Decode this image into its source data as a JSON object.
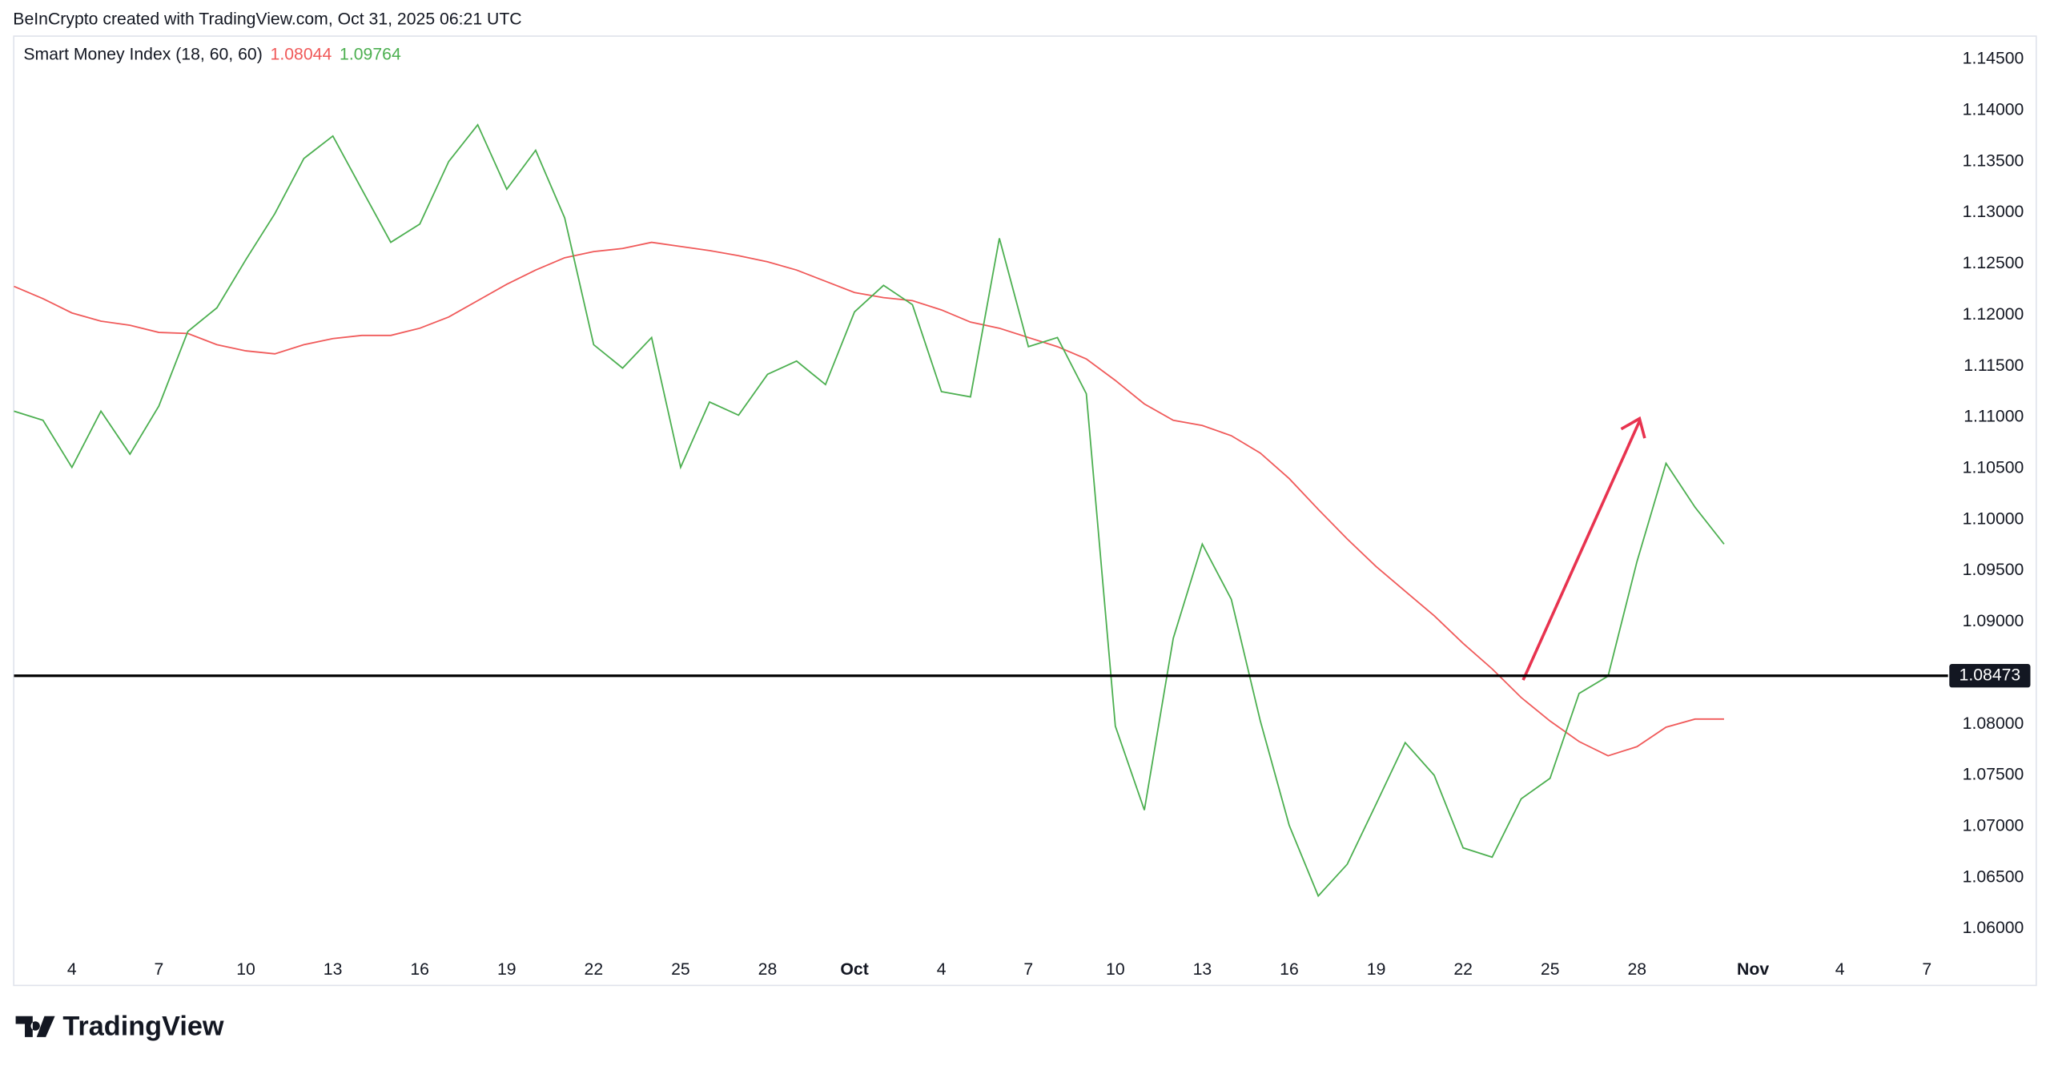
{
  "header": "BeInCrypto created with TradingView.com, Oct 31, 2025 06:21 UTC",
  "footer": "TradingView",
  "chart_data": {
    "type": "line",
    "indicator": "Smart Money Index (18, 60, 60)",
    "xlim": [
      "2025-09-02",
      "2025-11-08"
    ],
    "xticks": [
      {
        "value": "2025-09-04",
        "label": "4"
      },
      {
        "value": "2025-09-07",
        "label": "7"
      },
      {
        "value": "2025-09-10",
        "label": "10"
      },
      {
        "value": "2025-09-13",
        "label": "13"
      },
      {
        "value": "2025-09-16",
        "label": "16"
      },
      {
        "value": "2025-09-19",
        "label": "19"
      },
      {
        "value": "2025-09-22",
        "label": "22"
      },
      {
        "value": "2025-09-25",
        "label": "25"
      },
      {
        "value": "2025-09-28",
        "label": "28"
      },
      {
        "value": "2025-10-01",
        "label": "Oct"
      },
      {
        "value": "2025-10-04",
        "label": "4"
      },
      {
        "value": "2025-10-07",
        "label": "7"
      },
      {
        "value": "2025-10-10",
        "label": "10"
      },
      {
        "value": "2025-10-13",
        "label": "13"
      },
      {
        "value": "2025-10-16",
        "label": "16"
      },
      {
        "value": "2025-10-19",
        "label": "19"
      },
      {
        "value": "2025-10-22",
        "label": "22"
      },
      {
        "value": "2025-10-25",
        "label": "25"
      },
      {
        "value": "2025-10-28",
        "label": "28"
      },
      {
        "value": "2025-11-01",
        "label": "Nov"
      },
      {
        "value": "2025-11-04",
        "label": "4"
      },
      {
        "value": "2025-11-07",
        "label": "7"
      }
    ],
    "ylim": [
      1.0565,
      1.1472
    ],
    "yticks": [
      {
        "value": 1.145,
        "label": "1.14500"
      },
      {
        "value": 1.14,
        "label": "1.14000"
      },
      {
        "value": 1.135,
        "label": "1.13500"
      },
      {
        "value": 1.13,
        "label": "1.13000"
      },
      {
        "value": 1.125,
        "label": "1.12500"
      },
      {
        "value": 1.12,
        "label": "1.12000"
      },
      {
        "value": 1.115,
        "label": "1.11500"
      },
      {
        "value": 1.11,
        "label": "1.11000"
      },
      {
        "value": 1.105,
        "label": "1.10500"
      },
      {
        "value": 1.1,
        "label": "1.10000"
      },
      {
        "value": 1.095,
        "label": "1.09500"
      },
      {
        "value": 1.09,
        "label": "1.09000"
      },
      {
        "value": 1.085,
        "label": "1.08500"
      },
      {
        "value": 1.08,
        "label": "1.08000"
      },
      {
        "value": 1.075,
        "label": "1.07500"
      },
      {
        "value": 1.07,
        "label": "1.07000"
      },
      {
        "value": 1.065,
        "label": "1.06500"
      },
      {
        "value": 1.06,
        "label": "1.06000"
      }
    ],
    "level": {
      "value": 1.08473,
      "label": "1.08473"
    },
    "x_start": "2025-09-02",
    "series": [
      {
        "color": "#f05a5a",
        "last": {
          "value": 1.08044,
          "label": "1.08044"
        },
        "values": [
          1.1228,
          1.1216,
          1.1202,
          1.1194,
          1.119,
          1.1183,
          1.1182,
          1.1171,
          1.1165,
          1.1162,
          1.1171,
          1.1177,
          1.118,
          1.118,
          1.1187,
          1.1198,
          1.1214,
          1.123,
          1.1244,
          1.1256,
          1.1262,
          1.1265,
          1.1271,
          1.1267,
          1.1263,
          1.1258,
          1.1252,
          1.1244,
          1.1233,
          1.1222,
          1.1217,
          1.1214,
          1.1205,
          1.1193,
          1.1187,
          1.1178,
          1.1169,
          1.1157,
          1.1136,
          1.1113,
          1.1097,
          1.1092,
          1.1082,
          1.1065,
          1.104,
          1.101,
          1.0981,
          1.0954,
          1.093,
          1.0906,
          1.0879,
          1.0854,
          1.0826,
          1.0803,
          1.0783,
          1.0769,
          1.0778,
          1.0797,
          1.0805,
          1.0805
        ]
      },
      {
        "color": "#4caf50",
        "last": {
          "value": 1.09764,
          "label": "1.09764"
        },
        "values": [
          1.1106,
          1.1097,
          1.1051,
          1.1106,
          1.1064,
          1.1111,
          1.1184,
          1.1207,
          1.1254,
          1.1299,
          1.1353,
          1.1375,
          1.1323,
          1.1271,
          1.1289,
          1.135,
          1.1386,
          1.1323,
          1.1361,
          1.1295,
          1.1171,
          1.1148,
          1.1178,
          1.1051,
          1.1115,
          1.1102,
          1.1142,
          1.1155,
          1.1132,
          1.1203,
          1.1229,
          1.121,
          1.1125,
          1.112,
          1.1275,
          1.1169,
          1.1178,
          1.1123,
          1.0798,
          1.0716,
          1.0884,
          1.0976,
          1.0922,
          1.0803,
          1.0701,
          1.0632,
          1.0663,
          1.0722,
          1.0782,
          1.075,
          1.0679,
          1.067,
          1.0727,
          1.0747,
          1.083,
          1.0847,
          1.0959,
          1.1055,
          1.1012,
          1.0976
        ]
      }
    ]
  }
}
